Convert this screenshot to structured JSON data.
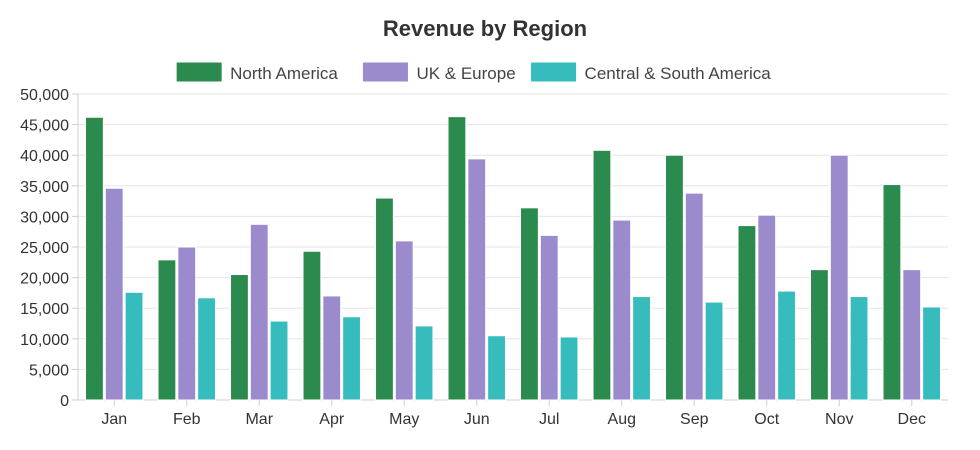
{
  "chart_data": {
    "type": "bar",
    "title": "Revenue by Region",
    "xlabel": "",
    "ylabel": "",
    "ylim": [
      0,
      50000
    ],
    "ytick_step": 5000,
    "grid": true,
    "legend_position": "top-center",
    "categories": [
      "Jan",
      "Feb",
      "Mar",
      "Apr",
      "May",
      "Jun",
      "Jul",
      "Aug",
      "Sep",
      "Oct",
      "Nov",
      "Dec"
    ],
    "series": [
      {
        "name": "North America",
        "color": "#2b8a4e",
        "values": [
          46200,
          22900,
          20500,
          24300,
          33000,
          46300,
          31400,
          40800,
          40000,
          28500,
          21300,
          35200
        ]
      },
      {
        "name": "UK & Europe",
        "color": "#9b8bcc",
        "values": [
          34600,
          25000,
          28700,
          17000,
          26000,
          39400,
          26900,
          29400,
          33800,
          30200,
          40000,
          21300
        ]
      },
      {
        "name": "Central & South America",
        "color": "#36bcbc",
        "values": [
          17600,
          16700,
          12900,
          13600,
          12100,
          10500,
          10300,
          16900,
          16000,
          17800,
          16900,
          15200
        ]
      }
    ]
  }
}
